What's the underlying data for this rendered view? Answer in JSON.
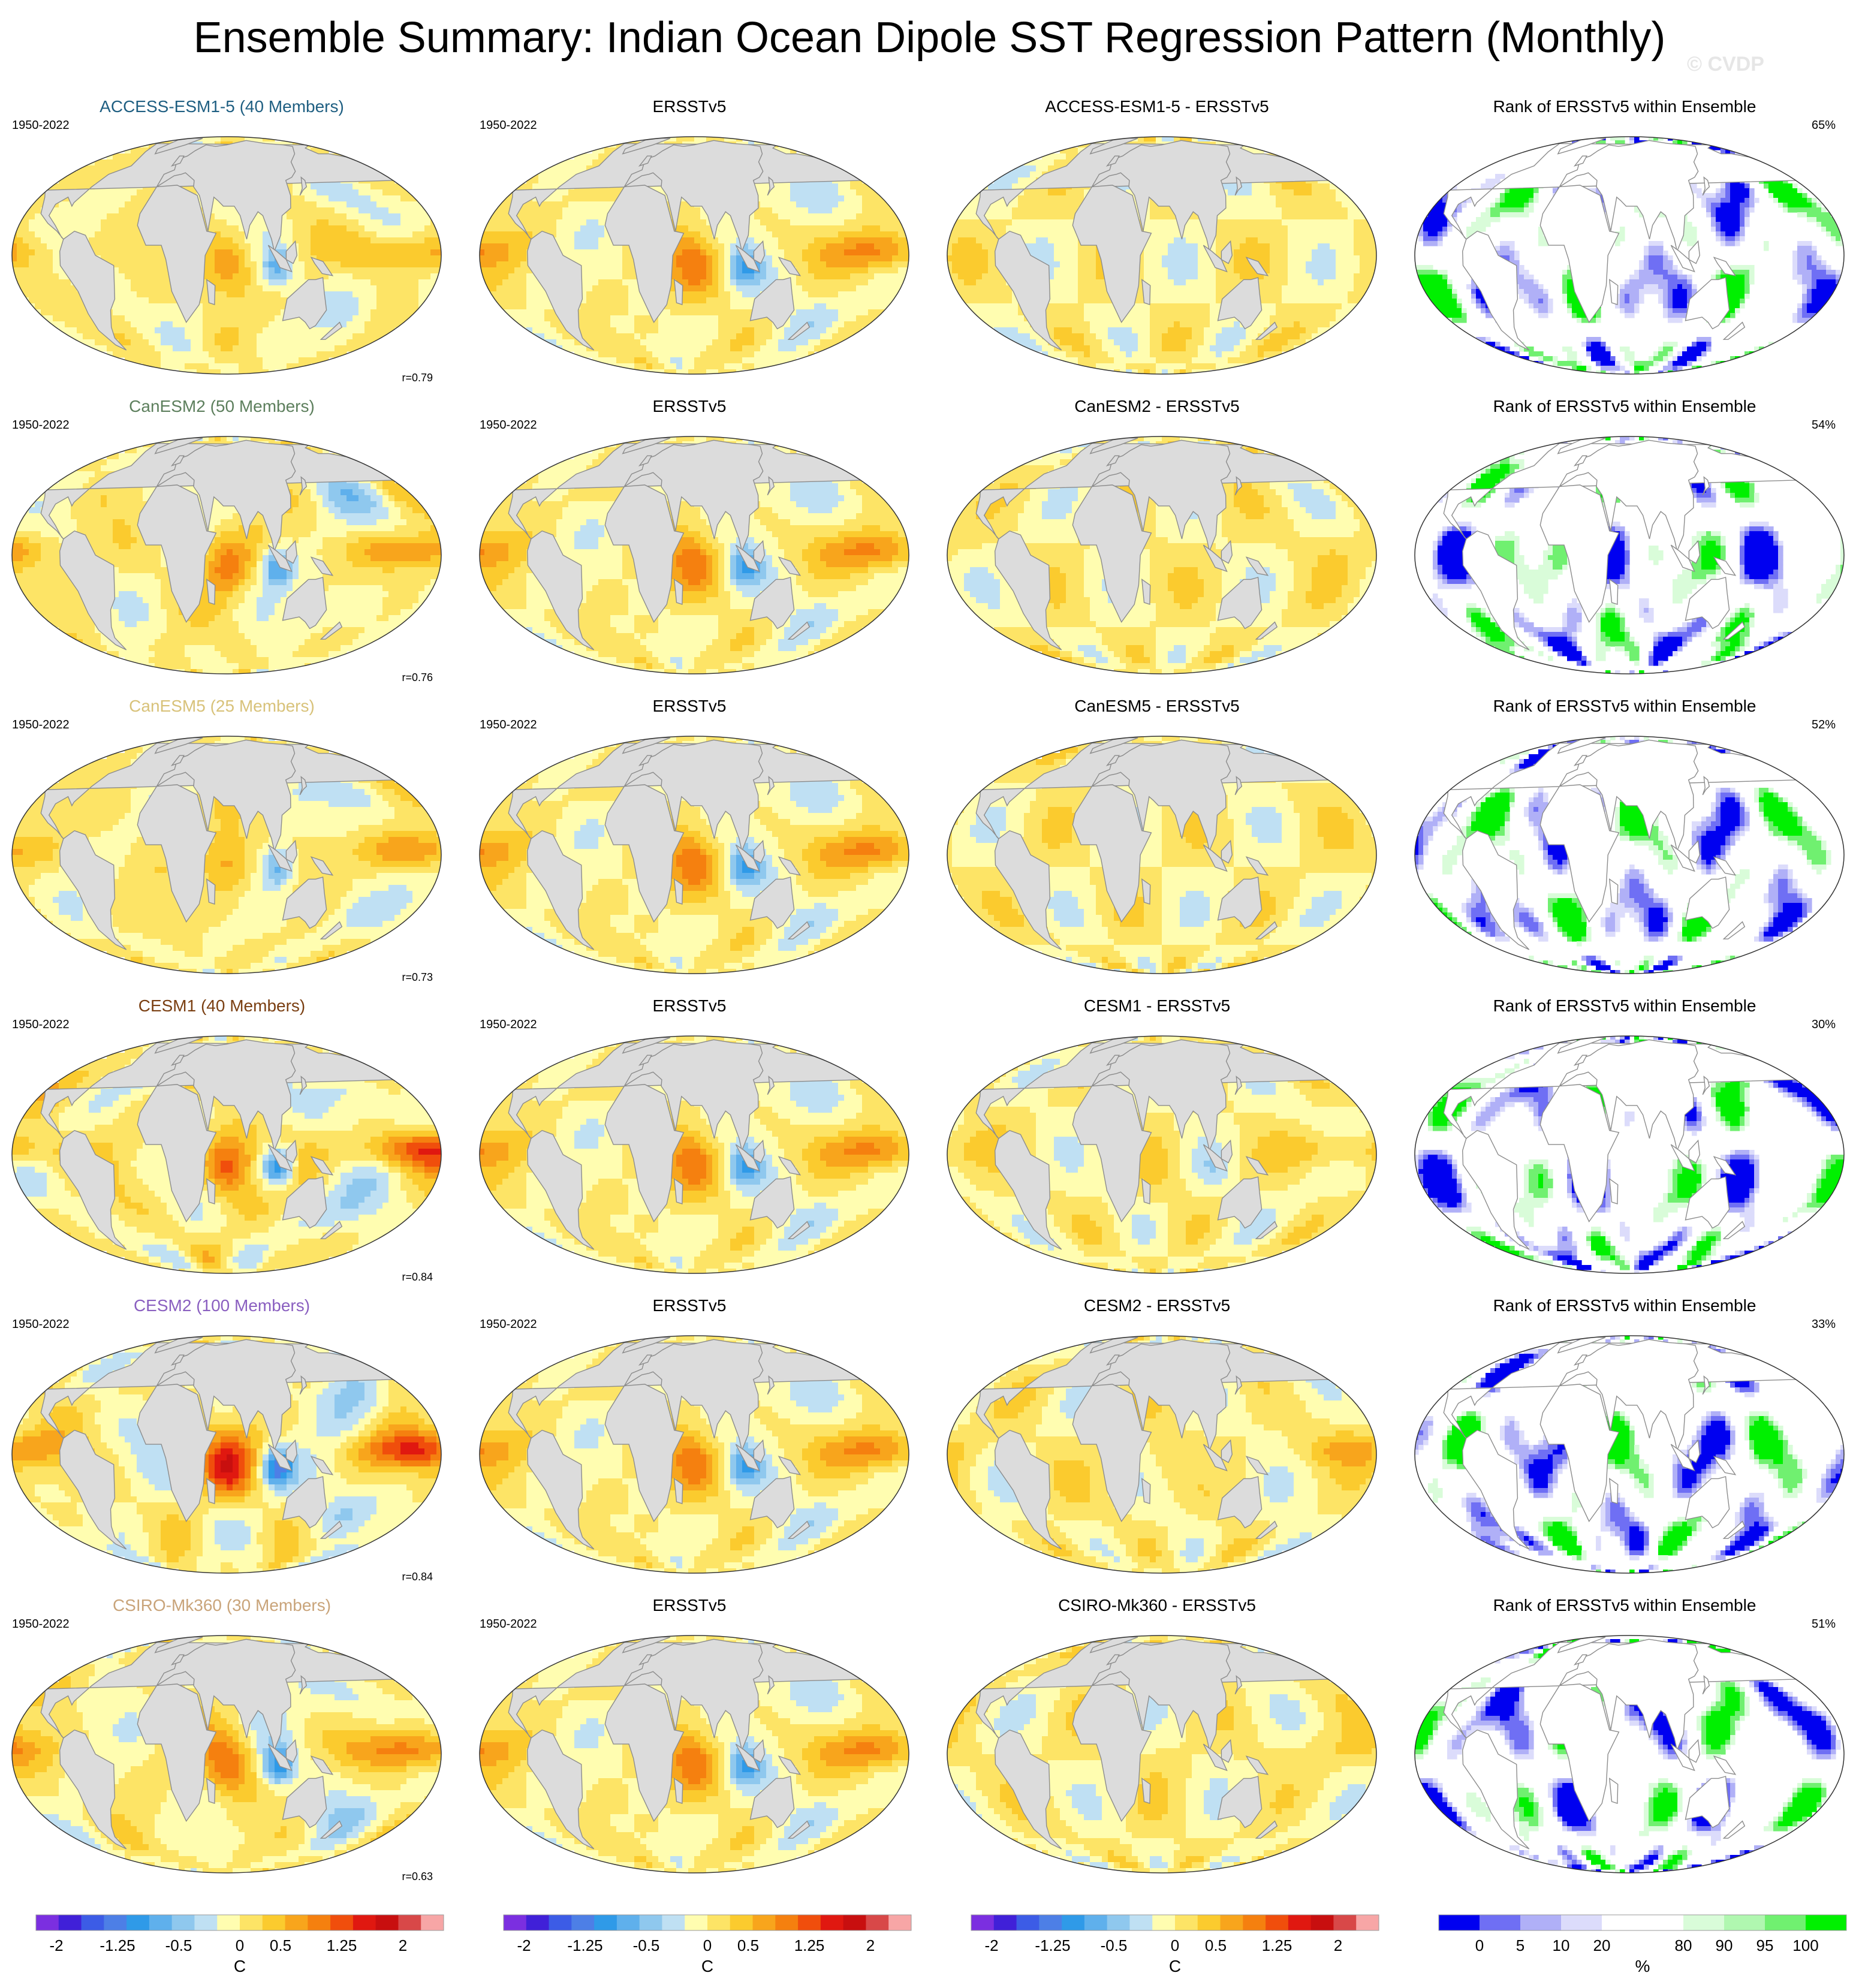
{
  "title": "Ensemble Summary: Indian Ocean Dipole SST Regression Pattern (Monthly)",
  "watermark": "© CVDP",
  "period": "1950-2022",
  "observation_label": "ERSSTv5",
  "rank_title": "Rank of ERSSTv5 within Ensemble",
  "rows": [
    {
      "model": "ACCESS-ESM1-5",
      "members_text": "ACCESS-ESM1-5 (40 Members)",
      "title_color": "#1f5f82",
      "diff_title": "ACCESS-ESM1-5 - ERSSTv5",
      "pattern_corr": "r=0.79",
      "rank_pct": "65%",
      "amp": 0.9
    },
    {
      "model": "CanESM2",
      "members_text": "CanESM2 (50 Members)",
      "title_color": "#5d7f5d",
      "diff_title": "CanESM2 - ERSSTv5",
      "pattern_corr": "r=0.76",
      "rank_pct": "54%",
      "amp": 1.0
    },
    {
      "model": "CanESM5",
      "members_text": "CanESM5 (25 Members)",
      "title_color": "#d8c27a",
      "diff_title": "CanESM5 - ERSSTv5",
      "pattern_corr": "r=0.73",
      "rank_pct": "52%",
      "amp": 0.9
    },
    {
      "model": "CESM1",
      "members_text": "CESM1 (40 Members)",
      "title_color": "#7a3f12",
      "diff_title": "CESM1 - ERSSTv5",
      "pattern_corr": "r=0.84",
      "rank_pct": "30%",
      "amp": 1.4
    },
    {
      "model": "CESM2",
      "members_text": "CESM2 (100 Members)",
      "title_color": "#8a5fc0",
      "diff_title": "CESM2 - ERSSTv5",
      "pattern_corr": "r=0.84",
      "rank_pct": "33%",
      "amp": 1.35
    },
    {
      "model": "CSIRO-Mk360",
      "members_text": "CSIRO-Mk360 (30 Members)",
      "title_color": "#c9a47a",
      "diff_title": "CSIRO-Mk360 - ERSSTv5",
      "pattern_corr": "r=0.63",
      "rank_pct": "51%",
      "amp": 1.1
    }
  ],
  "sst_colorbar": {
    "colors": [
      "#7b2fe0",
      "#4020d8",
      "#3c5ce6",
      "#4d7fe6",
      "#2f9ae8",
      "#5fb0ec",
      "#8fc8ee",
      "#bfe0f3",
      "#fffdb0",
      "#fde466",
      "#fbcb2e",
      "#f8a51c",
      "#f5800f",
      "#f04e0c",
      "#e01810",
      "#c80f0f",
      "#d84848",
      "#f7a6a6"
    ],
    "labels": [
      "-2",
      "-1.25",
      "-0.5",
      "0",
      "0.5",
      "1.25",
      "2"
    ],
    "label_positions": [
      0.5,
      2,
      3.5,
      5,
      6,
      7.5,
      9
    ],
    "unit": "C"
  },
  "rank_colorbar": {
    "colors": [
      "#0000f0",
      "#6f6ff4",
      "#b0b0f7",
      "#dcdcfb",
      "#ffffff",
      "#ffffff",
      "#d9fcd9",
      "#b0f7b0",
      "#70f070",
      "#00f000"
    ],
    "labels": [
      "0",
      "5",
      "10",
      "20",
      "80",
      "90",
      "95",
      "100"
    ],
    "label_positions": [
      1,
      2,
      3,
      4,
      6,
      7,
      8,
      9
    ],
    "unit": "%"
  },
  "map_colors": {
    "land": "#dcdcdc",
    "coast": "#8c8c8c",
    "border": "#333333"
  }
}
